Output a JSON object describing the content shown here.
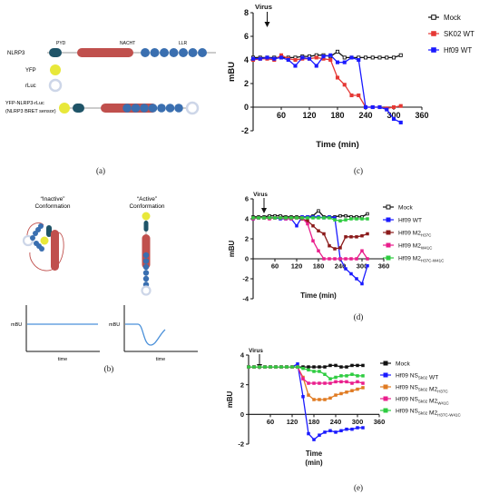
{
  "panel_a": {
    "label": "(a)",
    "rows": [
      {
        "name": "NLRP3",
        "domain_labels": [
          "PYD",
          "NACHT",
          "LLR"
        ]
      },
      {
        "name": "YFP"
      },
      {
        "name": "rLuc"
      },
      {
        "name": "YFP-NLRP3-rLuc",
        "name2": "(NLRP3 BRET sensor)"
      }
    ],
    "colors": {
      "pyd": "#1f5468",
      "nacht": "#c0504d",
      "lrr": "#3a6fb0",
      "yfp": "#e8e83a",
      "rluc": "#cdd6e8"
    }
  },
  "panel_b": {
    "label": "(b)",
    "inactive": {
      "title": "“Inactive”",
      "subtitle": "Conformation"
    },
    "active": {
      "title": "“Active”",
      "subtitle": "Conformation"
    },
    "ylabel": "mBU",
    "xlabel": "time"
  },
  "panel_c": {
    "label": "(c)"
  },
  "panel_d": {
    "label": "(d)"
  },
  "panel_e": {
    "label": "(e)"
  },
  "chart_data": [
    {
      "id": "c",
      "type": "line",
      "annotation": "Virus",
      "annotation_x": 30,
      "xlabel": "Time (min)",
      "ylabel": "mBU",
      "xlim": [
        0,
        360
      ],
      "ylim": [
        -2,
        8
      ],
      "xticks": [
        60,
        120,
        180,
        240,
        300,
        360
      ],
      "yticks": [
        -2,
        0,
        2,
        4,
        6,
        8
      ],
      "series": [
        {
          "name": "Mock",
          "color": "#111111",
          "marker": "open-square",
          "x": [
            0,
            15,
            30,
            45,
            60,
            75,
            90,
            105,
            120,
            135,
            150,
            165,
            180,
            195,
            210,
            225,
            240,
            255,
            270,
            285,
            300,
            315
          ],
          "y": [
            4.2,
            4.2,
            4.2,
            4.2,
            4.2,
            4.2,
            4.2,
            4.3,
            4.3,
            4.4,
            4.4,
            4.3,
            4.7,
            4.2,
            4.2,
            4.2,
            4.2,
            4.2,
            4.2,
            4.2,
            4.2,
            4.4
          ]
        },
        {
          "name": "SK02 WT",
          "color": "#e53935",
          "marker": "square",
          "x": [
            0,
            15,
            30,
            45,
            60,
            75,
            90,
            105,
            120,
            135,
            150,
            165,
            180,
            195,
            210,
            225,
            240,
            255,
            270,
            285,
            300,
            315
          ],
          "y": [
            4.0,
            4.1,
            4.1,
            4.0,
            4.4,
            4.1,
            4.0,
            4.1,
            4.1,
            4.2,
            4.1,
            4.0,
            2.5,
            1.9,
            1.0,
            1.0,
            0.0,
            0.0,
            0.0,
            -0.1,
            0.0,
            0.1
          ]
        },
        {
          "name": "Hf09 WT",
          "color": "#1a1aff",
          "marker": "square",
          "x": [
            0,
            15,
            30,
            45,
            60,
            75,
            90,
            105,
            120,
            135,
            150,
            165,
            180,
            195,
            210,
            225,
            240,
            255,
            270,
            285,
            300,
            315
          ],
          "y": [
            4.1,
            4.1,
            4.2,
            4.1,
            4.2,
            4.0,
            3.5,
            4.2,
            4.1,
            3.5,
            4.3,
            4.4,
            3.8,
            3.8,
            4.2,
            4.0,
            0.0,
            0.0,
            0.0,
            -0.2,
            -1.0,
            -1.3
          ]
        }
      ]
    },
    {
      "id": "d",
      "type": "line",
      "annotation": "Virus",
      "annotation_x": 30,
      "xlabel": "Time (min)",
      "ylabel": "mBU",
      "xlim": [
        0,
        360
      ],
      "ylim": [
        -4,
        6
      ],
      "xticks": [
        60,
        120,
        180,
        240,
        300,
        360
      ],
      "yticks": [
        -4,
        -2,
        0,
        2,
        4,
        6
      ],
      "series": [
        {
          "name": "Mock",
          "color": "#111111",
          "marker": "open-square",
          "x": [
            0,
            15,
            30,
            45,
            60,
            75,
            90,
            105,
            120,
            135,
            150,
            165,
            180,
            195,
            210,
            225,
            240,
            255,
            270,
            285,
            300,
            315
          ],
          "y": [
            4.2,
            4.2,
            4.2,
            4.3,
            4.3,
            4.3,
            4.2,
            4.2,
            4.2,
            4.2,
            4.2,
            4.3,
            4.8,
            4.2,
            4.2,
            4.2,
            4.3,
            4.3,
            4.2,
            4.2,
            4.2,
            4.5
          ]
        },
        {
          "name": "Hf09 WT",
          "color": "#1a1aff",
          "marker": "square",
          "x": [
            0,
            15,
            30,
            45,
            60,
            75,
            90,
            105,
            120,
            135,
            150,
            165,
            180,
            195,
            210,
            225,
            240,
            255,
            270,
            285,
            300,
            315
          ],
          "y": [
            4.0,
            4.1,
            4.1,
            4.1,
            4.1,
            4.0,
            4.0,
            4.0,
            3.3,
            4.2,
            4.2,
            4.2,
            4.2,
            4.1,
            4.2,
            4.1,
            0.0,
            -1.0,
            -1.5,
            -2.0,
            -2.5,
            -0.7
          ]
        },
        {
          "name": "Hf09 M2",
          "sub": "H37C",
          "color": "#8b1a1a",
          "marker": "square",
          "x": [
            0,
            15,
            30,
            45,
            60,
            75,
            90,
            105,
            120,
            135,
            150,
            165,
            180,
            195,
            210,
            225,
            240,
            255,
            270,
            285,
            300,
            315
          ],
          "y": [
            4.1,
            4.1,
            4.1,
            4.1,
            4.1,
            4.1,
            4.1,
            4.1,
            4.1,
            4.0,
            3.8,
            3.3,
            2.8,
            2.5,
            1.3,
            1.0,
            1.1,
            2.2,
            2.2,
            2.2,
            2.3,
            2.5
          ]
        },
        {
          "name": "Hf09 M2",
          "sub": "W41C",
          "color": "#e91e8c",
          "marker": "square",
          "x": [
            0,
            15,
            30,
            45,
            60,
            75,
            90,
            105,
            120,
            135,
            150,
            165,
            180,
            195,
            210,
            225,
            240,
            255,
            270,
            285,
            300,
            315
          ],
          "y": [
            4.0,
            4.1,
            4.1,
            4.0,
            4.1,
            4.1,
            4.0,
            4.0,
            4.1,
            4.1,
            3.5,
            1.8,
            0.8,
            0.0,
            0.0,
            0.0,
            0.0,
            0.0,
            0.0,
            0.0,
            0.8,
            0.0
          ]
        },
        {
          "name": "Hf09 M2",
          "sub": "H37C-W41C",
          "color": "#2ecc40",
          "marker": "square",
          "x": [
            0,
            15,
            30,
            45,
            60,
            75,
            90,
            105,
            120,
            135,
            150,
            165,
            180,
            195,
            210,
            225,
            240,
            255,
            270,
            285,
            300,
            315
          ],
          "y": [
            4.1,
            4.1,
            4.1,
            4.1,
            4.1,
            4.1,
            4.1,
            4.1,
            4.1,
            4.1,
            4.1,
            4.1,
            4.1,
            4.1,
            4.1,
            3.9,
            3.8,
            3.9,
            4.0,
            4.0,
            4.0,
            4.0
          ]
        }
      ]
    },
    {
      "id": "e",
      "type": "line",
      "annotation": "Virus",
      "annotation_x": 30,
      "xlabel": "Time",
      "xlabel2": "(min)",
      "ylabel": "mBU",
      "xlim": [
        0,
        360
      ],
      "ylim": [
        -2,
        4
      ],
      "xticks": [
        60,
        120,
        180,
        240,
        300,
        360
      ],
      "yticks": [
        -2,
        0,
        2,
        4
      ],
      "series": [
        {
          "name": "Mock",
          "color": "#111111",
          "marker": "square",
          "x": [
            0,
            15,
            30,
            45,
            60,
            75,
            90,
            105,
            120,
            135,
            150,
            165,
            180,
            195,
            210,
            225,
            240,
            255,
            270,
            285,
            300,
            315
          ],
          "y": [
            3.2,
            3.2,
            3.2,
            3.2,
            3.2,
            3.2,
            3.2,
            3.2,
            3.2,
            3.2,
            3.2,
            3.2,
            3.2,
            3.2,
            3.2,
            3.3,
            3.3,
            3.2,
            3.2,
            3.3,
            3.3,
            3.3
          ]
        },
        {
          "name": "Hf09 NS",
          "sub": "Sk02",
          "tail": " WT",
          "color": "#1a1aff",
          "marker": "square",
          "x": [
            0,
            15,
            30,
            45,
            60,
            75,
            90,
            105,
            120,
            135,
            150,
            165,
            180,
            195,
            210,
            225,
            240,
            255,
            270,
            285,
            300,
            315
          ],
          "y": [
            3.2,
            3.2,
            3.2,
            3.2,
            3.2,
            3.2,
            3.2,
            3.2,
            3.2,
            3.4,
            1.2,
            -1.3,
            -1.7,
            -1.4,
            -1.2,
            -1.1,
            -1.2,
            -1.1,
            -1.0,
            -1.0,
            -0.9,
            -0.9
          ]
        },
        {
          "name": "Hf09 NS",
          "sub": "Sk02",
          "tail": " M2",
          "sub2": "H37C",
          "color": "#e07b22",
          "marker": "square",
          "x": [
            0,
            15,
            30,
            45,
            60,
            75,
            90,
            105,
            120,
            135,
            150,
            165,
            180,
            195,
            210,
            225,
            240,
            255,
            270,
            285,
            300,
            315
          ],
          "y": [
            3.2,
            3.2,
            3.2,
            3.2,
            3.2,
            3.2,
            3.2,
            3.2,
            3.2,
            3.2,
            2.5,
            1.3,
            1.0,
            1.0,
            1.0,
            1.1,
            1.3,
            1.4,
            1.5,
            1.6,
            1.7,
            1.8
          ]
        },
        {
          "name": "Hf09 NS",
          "sub": "Sk02",
          "tail": " M2",
          "sub2": "W41C",
          "color": "#e91e8c",
          "marker": "square",
          "x": [
            0,
            15,
            30,
            45,
            60,
            75,
            90,
            105,
            120,
            135,
            150,
            165,
            180,
            195,
            210,
            225,
            240,
            255,
            270,
            285,
            300,
            315
          ],
          "y": [
            3.2,
            3.2,
            3.2,
            3.2,
            3.2,
            3.2,
            3.2,
            3.2,
            3.2,
            3.2,
            2.4,
            2.1,
            2.1,
            2.1,
            2.1,
            2.1,
            2.2,
            2.2,
            2.2,
            2.1,
            2.2,
            2.1
          ]
        },
        {
          "name": "Hf09 NS",
          "sub": "Sk02",
          "tail": " M2",
          "sub2": "H37C-W41C",
          "color": "#2ecc40",
          "marker": "square",
          "x": [
            0,
            15,
            30,
            45,
            60,
            75,
            90,
            105,
            120,
            135,
            150,
            165,
            180,
            195,
            210,
            225,
            240,
            255,
            270,
            285,
            300,
            315
          ],
          "y": [
            3.2,
            3.2,
            3.2,
            3.2,
            3.2,
            3.2,
            3.2,
            3.2,
            3.2,
            3.2,
            3.1,
            3.0,
            2.9,
            2.9,
            2.7,
            2.4,
            2.5,
            2.6,
            2.6,
            2.7,
            2.6,
            2.6
          ]
        }
      ]
    }
  ]
}
